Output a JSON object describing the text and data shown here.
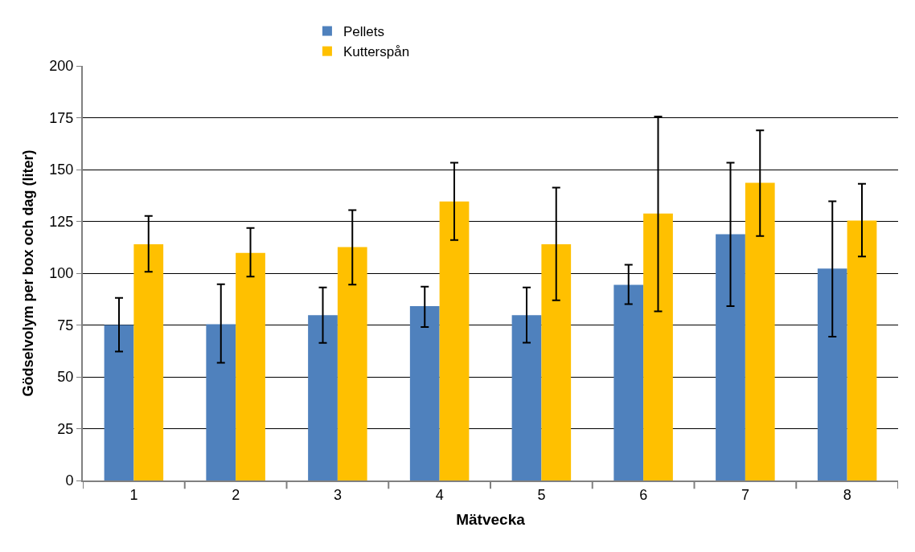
{
  "chart_data": {
    "type": "bar",
    "xlabel": "Mätvecka",
    "ylabel": "Gödselvolym per box och dag (liter)",
    "categories": [
      "1",
      "2",
      "3",
      "4",
      "5",
      "6",
      "7",
      "8"
    ],
    "series": [
      {
        "name": "Pellets",
        "color": "#4f81bd",
        "values": [
          75,
          75.4,
          79.7,
          84.1,
          79.7,
          94.4,
          118.8,
          102.2
        ],
        "errors": [
          [
            62.2,
            88.1
          ],
          [
            56.8,
            94.7
          ],
          [
            66.4,
            93.1
          ],
          [
            74,
            93.5
          ],
          [
            66.5,
            93.1
          ],
          [
            85.1,
            104.1
          ],
          [
            84.1,
            153.3
          ],
          [
            69.4,
            134.7
          ]
        ]
      },
      {
        "name": "Kutterspån",
        "color": "#ffc000",
        "values": [
          114,
          109.8,
          112.6,
          134.6,
          114,
          128.8,
          143.6,
          125.4
        ],
        "errors": [
          [
            100.7,
            127.6
          ],
          [
            98.4,
            121.8
          ],
          [
            94.5,
            130.4
          ],
          [
            116,
            153.3
          ],
          [
            86.9,
            141.3
          ],
          [
            81.6,
            175.6
          ],
          [
            117.9,
            168.9
          ],
          [
            108,
            143.1
          ]
        ]
      }
    ],
    "ylim": [
      0,
      200
    ],
    "yticks": [
      0,
      25,
      50,
      75,
      100,
      125,
      150,
      175,
      200
    ],
    "grid": "y",
    "legend": "top"
  }
}
